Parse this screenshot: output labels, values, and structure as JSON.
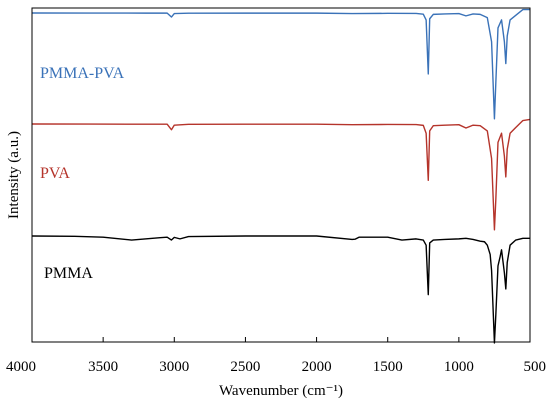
{
  "chart_data": {
    "type": "line",
    "xlabel": "Wavenumber (cm⁻¹)",
    "ylabel": "Intensity (a.u.)",
    "xlim": [
      4000,
      500
    ],
    "x_reversed": true,
    "y_tick_labels": false,
    "grid": false,
    "x_ticks": [
      4000,
      3500,
      3000,
      2500,
      2000,
      1500,
      1000,
      500
    ],
    "x_tick_labels": [
      "4000",
      "3500",
      "3000",
      "2500",
      "2000",
      "1500",
      "1000",
      "500"
    ],
    "series": [
      {
        "name": "PMMA-PVA",
        "color": "#3a72b8",
        "points": [
          [
            4000,
            0.0
          ],
          [
            3600,
            -0.005
          ],
          [
            3200,
            -0.01
          ],
          [
            3050,
            -0.01
          ],
          [
            3020,
            -0.35
          ],
          [
            3000,
            -0.05
          ],
          [
            2900,
            -0.02
          ],
          [
            2500,
            -0.01
          ],
          [
            2000,
            -0.01
          ],
          [
            1750,
            -0.05
          ],
          [
            1500,
            -0.03
          ],
          [
            1300,
            -0.04
          ],
          [
            1250,
            -0.1
          ],
          [
            1230,
            -0.6
          ],
          [
            1215,
            -5.3
          ],
          [
            1205,
            -0.5
          ],
          [
            1180,
            -0.12
          ],
          [
            1100,
            -0.08
          ],
          [
            1000,
            -0.05
          ],
          [
            950,
            -0.25
          ],
          [
            900,
            -0.08
          ],
          [
            850,
            -0.12
          ],
          [
            800,
            -0.4
          ],
          [
            770,
            -2.5
          ],
          [
            750,
            -9.2
          ],
          [
            740,
            -6.0
          ],
          [
            725,
            -1.3
          ],
          [
            700,
            -0.6
          ],
          [
            680,
            -2.5
          ],
          [
            670,
            -4.4
          ],
          [
            660,
            -2.0
          ],
          [
            640,
            -0.6
          ],
          [
            600,
            -0.2
          ],
          [
            550,
            0.3
          ],
          [
            500,
            0.3
          ]
        ]
      },
      {
        "name": "PVA",
        "color": "#b5342b",
        "points": [
          [
            4000,
            0.0
          ],
          [
            3600,
            -0.01
          ],
          [
            3200,
            -0.02
          ],
          [
            3050,
            -0.02
          ],
          [
            3020,
            -0.5
          ],
          [
            3000,
            -0.1
          ],
          [
            2900,
            -0.03
          ],
          [
            2500,
            -0.02
          ],
          [
            2000,
            -0.02
          ],
          [
            1750,
            -0.06
          ],
          [
            1500,
            -0.04
          ],
          [
            1300,
            -0.05
          ],
          [
            1250,
            -0.12
          ],
          [
            1230,
            -0.8
          ],
          [
            1215,
            -4.9
          ],
          [
            1205,
            -0.6
          ],
          [
            1180,
            -0.15
          ],
          [
            1100,
            -0.1
          ],
          [
            1000,
            -0.06
          ],
          [
            950,
            -0.35
          ],
          [
            900,
            -0.1
          ],
          [
            850,
            -0.15
          ],
          [
            800,
            -0.6
          ],
          [
            770,
            -3.0
          ],
          [
            750,
            -9.2
          ],
          [
            740,
            -6.5
          ],
          [
            725,
            -1.6
          ],
          [
            700,
            -0.8
          ],
          [
            680,
            -2.8
          ],
          [
            670,
            -4.6
          ],
          [
            660,
            -2.2
          ],
          [
            640,
            -0.8
          ],
          [
            600,
            -0.3
          ],
          [
            550,
            0.3
          ],
          [
            500,
            0.4
          ]
        ]
      },
      {
        "name": "PMMA",
        "color": "#000000",
        "points": [
          [
            4000,
            0.0
          ],
          [
            3700,
            -0.03
          ],
          [
            3500,
            -0.1
          ],
          [
            3300,
            -0.35
          ],
          [
            3100,
            -0.15
          ],
          [
            3050,
            -0.1
          ],
          [
            3020,
            -0.35
          ],
          [
            3000,
            -0.12
          ],
          [
            2960,
            -0.25
          ],
          [
            2900,
            -0.05
          ],
          [
            2500,
            0.0
          ],
          [
            2000,
            0.0
          ],
          [
            1750,
            -0.3
          ],
          [
            1730,
            -0.28
          ],
          [
            1700,
            -0.1
          ],
          [
            1500,
            -0.1
          ],
          [
            1400,
            -0.35
          ],
          [
            1300,
            -0.25
          ],
          [
            1250,
            -0.35
          ],
          [
            1230,
            -0.8
          ],
          [
            1215,
            -5.1
          ],
          [
            1205,
            -0.6
          ],
          [
            1180,
            -0.35
          ],
          [
            1100,
            -0.3
          ],
          [
            1000,
            -0.25
          ],
          [
            950,
            -0.2
          ],
          [
            900,
            -0.3
          ],
          [
            850,
            -0.45
          ],
          [
            820,
            -0.5
          ],
          [
            800,
            -0.8
          ],
          [
            780,
            -1.6
          ],
          [
            770,
            -3.0
          ],
          [
            750,
            -9.3
          ],
          [
            740,
            -6.8
          ],
          [
            725,
            -2.6
          ],
          [
            710,
            -1.8
          ],
          [
            700,
            -1.2
          ],
          [
            680,
            -3.2
          ],
          [
            670,
            -4.6
          ],
          [
            660,
            -2.3
          ],
          [
            640,
            -0.8
          ],
          [
            600,
            -0.35
          ],
          [
            550,
            -0.2
          ],
          [
            500,
            -0.2
          ]
        ]
      }
    ]
  }
}
